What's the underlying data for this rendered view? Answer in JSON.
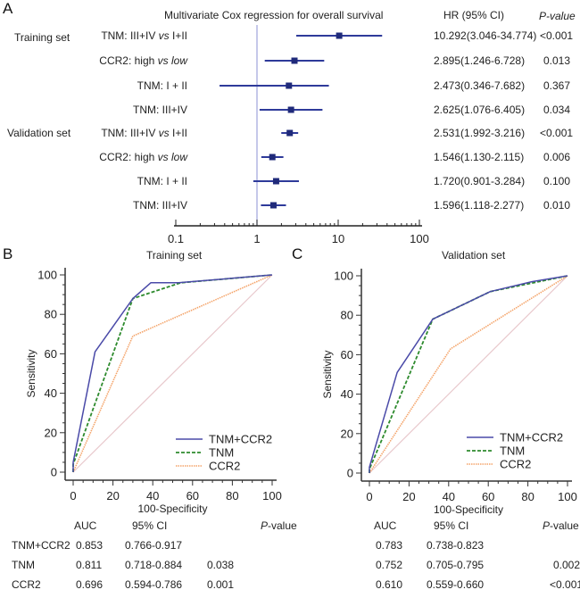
{
  "panels": {
    "A": "A",
    "B": "B",
    "C": "C"
  },
  "chart_data": [
    {
      "type": "forest",
      "panel": "A",
      "title": "Multivariate Cox regression for overall survival",
      "column_headers": {
        "hr": "HR  (95% CI)",
        "p": "P-value"
      },
      "xscale": "log",
      "xlim": [
        0.1,
        100
      ],
      "xticks": [
        "0.1",
        "1",
        "10",
        "100"
      ],
      "reference_line": 1,
      "groups": [
        {
          "name": "Training set",
          "rows": [
            {
              "label": "TNM: III+IV ",
              "label_it": "vs",
              "label_end": " I+II",
              "hr": 10.292,
              "lo": 3.046,
              "hi": 34.774,
              "hr_text": "10.292(3.046-34.774)",
              "p": "<0.001"
            },
            {
              "label": "CCR2: high ",
              "label_it": "vs",
              "label_end": " low",
              "end_italic": true,
              "hr": 2.895,
              "lo": 1.246,
              "hi": 6.728,
              "hr_text": "2.895(1.246-6.728)",
              "p": "0.013"
            },
            {
              "label": "TNM:  I + II",
              "label_it": "",
              "label_end": "",
              "hr": 2.473,
              "lo": 0.346,
              "hi": 7.682,
              "hr_text": "2.473(0.346-7.682)",
              "p": "0.367"
            },
            {
              "label": "TNM: III+IV",
              "label_it": "",
              "label_end": "",
              "hr": 2.625,
              "lo": 1.076,
              "hi": 6.405,
              "hr_text": "2.625(1.076-6.405)",
              "p": "0.034"
            }
          ]
        },
        {
          "name": "Validation set",
          "rows": [
            {
              "label": "TNM: III+IV ",
              "label_it": "vs",
              "label_end": " I+II",
              "hr": 2.531,
              "lo": 1.992,
              "hi": 3.216,
              "hr_text": "2.531(1.992-3.216)",
              "p": "<0.001"
            },
            {
              "label": "CCR2: high ",
              "label_it": "vs",
              "label_end": " low",
              "end_italic": true,
              "hr": 1.546,
              "lo": 1.13,
              "hi": 2.115,
              "hr_text": "1.546(1.130-2.115)",
              "p": "0.006"
            },
            {
              "label": "TNM:  I + II",
              "label_it": "",
              "label_end": "",
              "hr": 1.72,
              "lo": 0.901,
              "hi": 3.284,
              "hr_text": "1.720(0.901-3.284)",
              "p": "0.100"
            },
            {
              "label": "TNM: III+IV",
              "label_it": "",
              "label_end": "",
              "hr": 1.596,
              "lo": 1.118,
              "hi": 2.277,
              "hr_text": "1.596(1.118-2.277)",
              "p": "0.010"
            }
          ]
        }
      ],
      "colors": {
        "marker": "#1f2a7a",
        "ci": "#2e3a9a",
        "reference": "#9fa3dd"
      }
    },
    {
      "type": "line",
      "panel": "B",
      "title": "Training set",
      "xlabel": "100-Specificity",
      "ylabel": "Sensitivity",
      "xlim": [
        0,
        100
      ],
      "ylim": [
        0,
        100
      ],
      "xticks": [
        0,
        20,
        40,
        60,
        80,
        100
      ],
      "yticks": [
        0,
        20,
        40,
        60,
        80,
        100
      ],
      "legend_position": "bottom-right",
      "series": [
        {
          "name": "TNM+CCR2",
          "style": "solid",
          "color": "#4a4aa8",
          "x": [
            0,
            0,
            11,
            30,
            39,
            53,
            100
          ],
          "y": [
            0,
            5,
            61,
            88,
            96,
            96,
            100
          ]
        },
        {
          "name": "TNM",
          "style": "dashed",
          "color": "#2e8b2e",
          "x": [
            0,
            0,
            30,
            54,
            100
          ],
          "y": [
            0,
            4,
            88,
            96,
            100
          ]
        },
        {
          "name": "CCR2",
          "style": "dotted",
          "color": "#f4a46a",
          "x": [
            0,
            30,
            100
          ],
          "y": [
            0,
            69,
            100
          ]
        }
      ],
      "diagonal_color": "#e8c8cc",
      "table": {
        "headers": [
          "AUC",
          "95% CI",
          "P-value"
        ],
        "rows": [
          {
            "name": "TNM+CCR2",
            "auc": "0.853",
            "ci": "0.766-0.917",
            "p": ""
          },
          {
            "name": "TNM",
            "auc": "0.811",
            "ci": "0.718-0.884",
            "p": "0.038"
          },
          {
            "name": "CCR2",
            "auc": "0.696",
            "ci": "0.594-0.786",
            "p": "0.001"
          }
        ]
      }
    },
    {
      "type": "line",
      "panel": "C",
      "title": "Validation set",
      "xlabel": "100-Specificity",
      "ylabel": "Sensitivity",
      "xlim": [
        0,
        100
      ],
      "ylim": [
        0,
        100
      ],
      "xticks": [
        0,
        20,
        40,
        60,
        80,
        100
      ],
      "yticks": [
        0,
        20,
        40,
        60,
        80,
        100
      ],
      "legend_position": "bottom-right",
      "series": [
        {
          "name": "TNM+CCR2",
          "style": "solid",
          "color": "#4a4aa8",
          "x": [
            0,
            0,
            14,
            32,
            61,
            82,
            100
          ],
          "y": [
            0,
            3,
            51,
            78,
            92,
            97,
            100
          ]
        },
        {
          "name": "TNM",
          "style": "dashed",
          "color": "#2e8b2e",
          "x": [
            0,
            0,
            32,
            61,
            100
          ],
          "y": [
            0,
            2,
            78,
            92,
            100
          ]
        },
        {
          "name": "CCR2",
          "style": "dotted",
          "color": "#f4a46a",
          "x": [
            0,
            41,
            100
          ],
          "y": [
            0,
            63,
            100
          ]
        }
      ],
      "diagonal_color": "#e8c8cc",
      "table": {
        "headers": [
          "AUC",
          "95% CI",
          "P-value"
        ],
        "rows": [
          {
            "name": "TNM+CCR2",
            "auc": "0.783",
            "ci": "0.738-0.823",
            "p": ""
          },
          {
            "name": "TNM",
            "auc": "0.752",
            "ci": "0.705-0.795",
            "p": "0.002"
          },
          {
            "name": "CCR2",
            "auc": "0.610",
            "ci": "0.559-0.660",
            "p": "<0.001"
          }
        ]
      }
    }
  ]
}
